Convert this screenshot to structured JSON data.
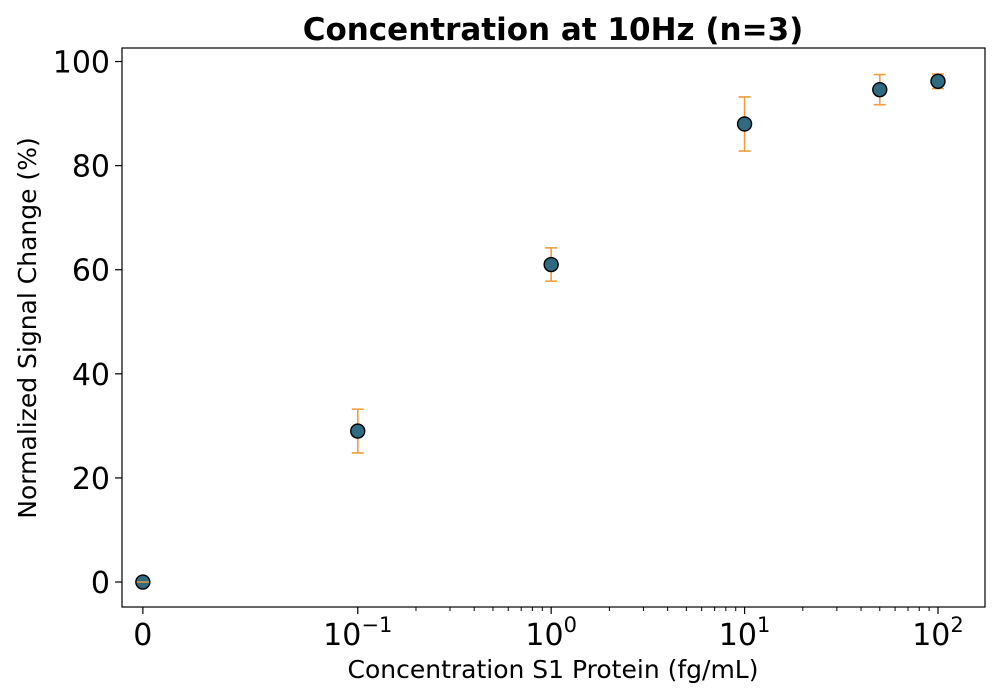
{
  "chart_data": {
    "type": "scatter",
    "title": "Concentration at 10Hz (n=3)",
    "xlabel": "Concentration S1 Protein (fg/mL)",
    "ylabel": "Normalized Signal Change (%)",
    "xscale": "symlog",
    "xlim": [
      -0.0097,
      175
    ],
    "ylim": [
      -4.8,
      102.6
    ],
    "grid": false,
    "legend": "none",
    "x_ticks": [
      {
        "value": 0,
        "base": "0",
        "exp": ""
      },
      {
        "value": 0.1,
        "base": "10",
        "exp": "−1"
      },
      {
        "value": 1,
        "base": "10",
        "exp": "0"
      },
      {
        "value": 10,
        "base": "10",
        "exp": "1"
      },
      {
        "value": 100,
        "base": "10",
        "exp": "2"
      }
    ],
    "y_ticks": [
      {
        "value": 0,
        "label": "0"
      },
      {
        "value": 20,
        "label": "20"
      },
      {
        "value": 40,
        "label": "40"
      },
      {
        "value": 60,
        "label": "60"
      },
      {
        "value": 80,
        "label": "80"
      },
      {
        "value": 100,
        "label": "100"
      }
    ],
    "points": [
      {
        "x": 0,
        "y": 0,
        "err": 0
      },
      {
        "x": 0.1,
        "y": 29.0,
        "err": 4.2
      },
      {
        "x": 1,
        "y": 61.0,
        "err": 3.2
      },
      {
        "x": 10,
        "y": 88.0,
        "err": 5.2
      },
      {
        "x": 50,
        "y": 94.6,
        "err": 2.9
      },
      {
        "x": 100,
        "y": 96.2,
        "err": 1.4
      }
    ],
    "marker_color": "#2e6b80",
    "marker_edge_color": "#000000",
    "errorbar_color": "#f39c3c"
  }
}
